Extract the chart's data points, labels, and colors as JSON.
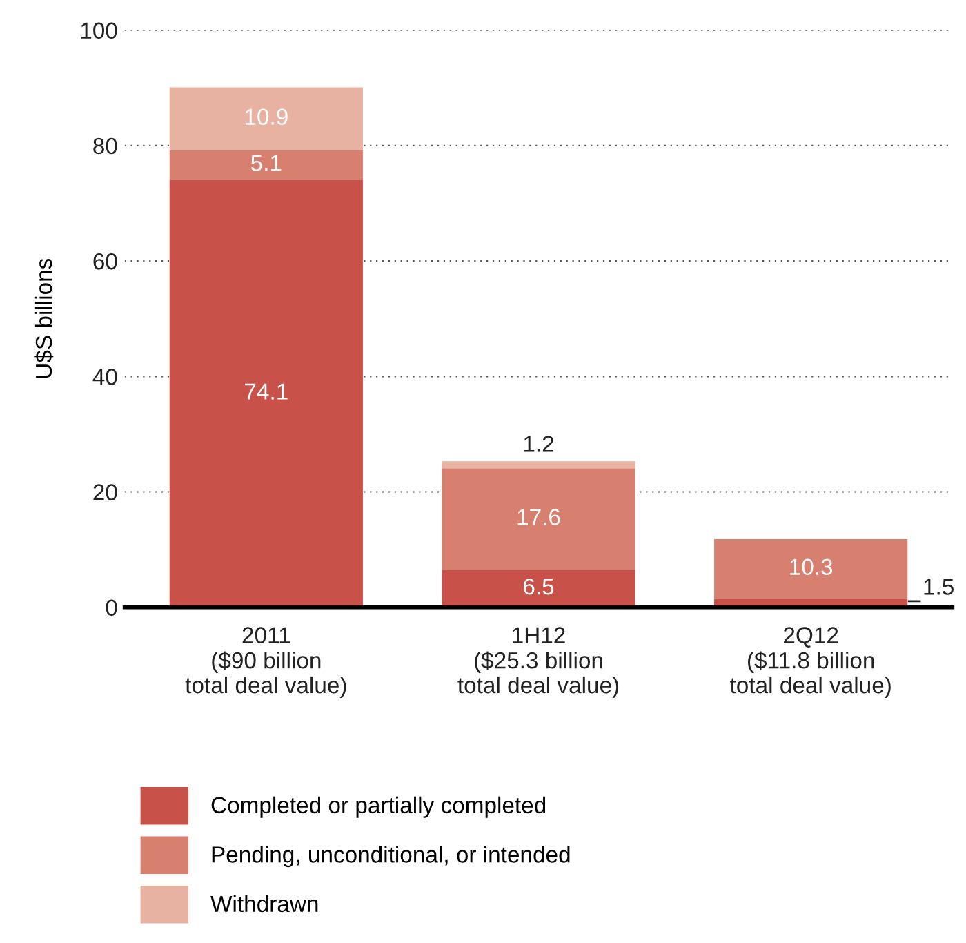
{
  "chart_data": {
    "type": "bar",
    "stacked": true,
    "ylabel": "U$S billions",
    "categories": [
      "2011\n($90 billion\ntotal deal value)",
      "1H12\n($25.3 billion\ntotal deal value)",
      "2Q12\n($11.8 billion\ntotal deal value)"
    ],
    "series": [
      {
        "name": "Completed or partially completed",
        "color": "#c8524a",
        "values": [
          74.1,
          6.5,
          1.5
        ],
        "value_labels": [
          "74.1",
          "6.5",
          "1.5"
        ]
      },
      {
        "name": "Pending, unconditional, or intended",
        "color": "#d78070",
        "values": [
          5.1,
          17.6,
          10.3
        ],
        "value_labels": [
          "5.1",
          "17.6",
          "10.3"
        ]
      },
      {
        "name": "Withdrawn",
        "color": "#e8b2a3",
        "values": [
          10.9,
          1.2,
          null
        ],
        "value_labels": [
          "10.9",
          "1.2",
          null
        ]
      }
    ],
    "ylim": [
      0,
      100
    ],
    "yticks": [
      0,
      20,
      40,
      60,
      80,
      100
    ],
    "grid": "y",
    "legend": "bottom"
  }
}
